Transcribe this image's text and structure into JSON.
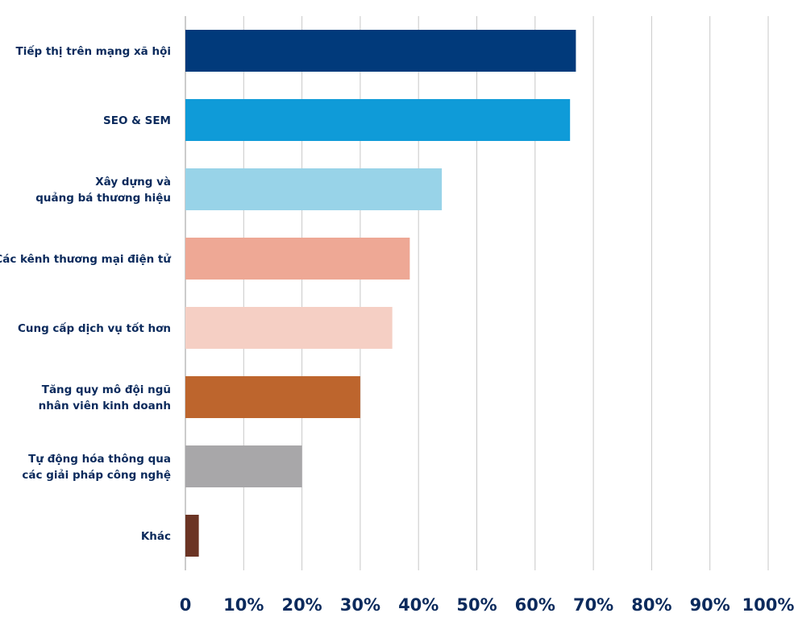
{
  "chart_data": {
    "type": "bar",
    "orientation": "horizontal",
    "categories": [
      [
        "Tiếp thị trên mạng xã hội"
      ],
      [
        "SEO & SEM"
      ],
      [
        "Xây dựng và",
        "quảng bá thương hiệu"
      ],
      [
        "Các kênh thương mại điện tử"
      ],
      [
        "Cung cấp dịch vụ tốt hơn"
      ],
      [
        "Tăng quy mô đội ngũ",
        "nhân viên kinh doanh"
      ],
      [
        "Tự động hóa thông qua",
        "các giải pháp công nghệ"
      ],
      [
        "Khác"
      ]
    ],
    "values": [
      67,
      66,
      44,
      38.5,
      35.5,
      30,
      20,
      2.3
    ],
    "colors": [
      "#013a7b",
      "#0f9bd8",
      "#98d3e8",
      "#eea895",
      "#f5cfc4",
      "#bd652d",
      "#a8a7a9",
      "#6b3424"
    ],
    "xlim": [
      0,
      100
    ],
    "xticks": [
      0,
      10,
      20,
      30,
      40,
      50,
      60,
      70,
      80,
      90,
      100
    ],
    "xtick_labels": [
      "0",
      "10%",
      "20%",
      "30%",
      "40%",
      "50%",
      "60%",
      "70%",
      "80%",
      "90%",
      "100%"
    ],
    "grid": true,
    "grid_color": "#c8c8c8",
    "text_color": "#0b2a5c"
  }
}
